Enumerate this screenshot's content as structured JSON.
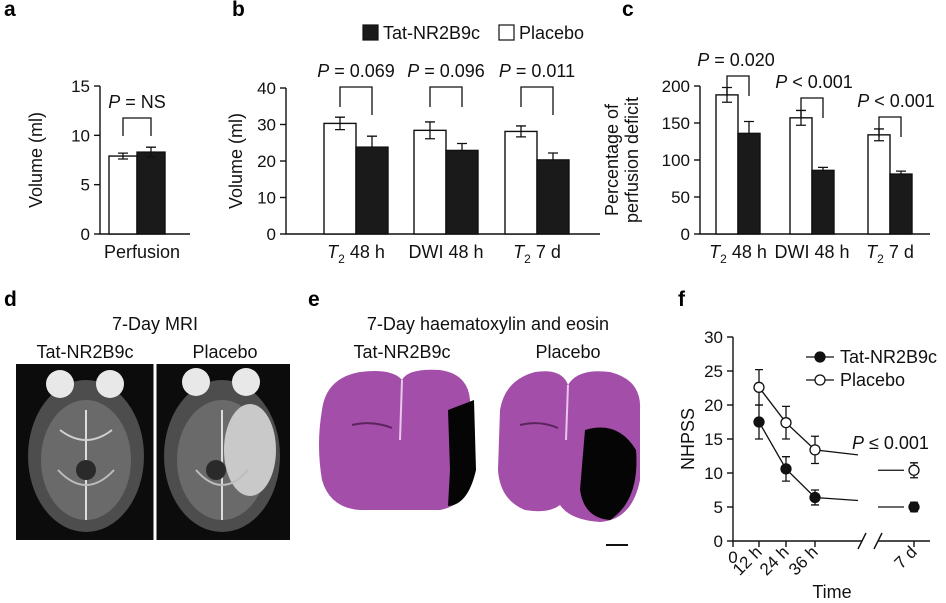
{
  "panels": {
    "a": "a",
    "b": "b",
    "c": "c",
    "d": "d",
    "e": "e",
    "f": "f"
  },
  "legend_top": {
    "treat": "Tat-NR2B9c",
    "placebo": "Placebo"
  },
  "panel_d": {
    "title": "7-Day MRI",
    "left_label": "Tat-NR2B9c",
    "right_label": "Placebo"
  },
  "panel_e": {
    "title": "7-Day haematoxylin and eosin",
    "left_label": "Tat-NR2B9c",
    "right_label": "Placebo"
  },
  "colors": {
    "treat": "#1a1a1a",
    "placebo": "#ffffff",
    "he_stain": "#a34ea8",
    "mri_bg": "#0c0c0c"
  },
  "chart_data": [
    {
      "id": "a",
      "type": "bar",
      "ylabel": "Volume (ml)",
      "ylim": [
        0,
        15
      ],
      "yticks": [
        "0",
        "5",
        "10",
        "15"
      ],
      "categories": [
        "Perfusion"
      ],
      "series": [
        {
          "name": "Placebo",
          "values": [
            7.9
          ],
          "errors": [
            0.3
          ]
        },
        {
          "name": "Tat-NR2B9c",
          "values": [
            8.3
          ],
          "errors": [
            0.5
          ]
        }
      ],
      "annotations": [
        "P = NS"
      ]
    },
    {
      "id": "b",
      "type": "bar",
      "ylabel": "Volume (ml)",
      "ylim": [
        0,
        40
      ],
      "yticks": [
        "0",
        "10",
        "20",
        "30",
        "40"
      ],
      "categories": [
        {
          "main": "T",
          "sub": "2",
          "rest": " 48 h"
        },
        {
          "main": "DWI 48 h",
          "sub": "",
          "rest": ""
        },
        {
          "main": "T",
          "sub": "2",
          "rest": " 7 d"
        }
      ],
      "series": [
        {
          "name": "Placebo",
          "values": [
            30.3,
            28.4,
            28.1
          ],
          "errors": [
            1.7,
            2.3,
            1.5
          ]
        },
        {
          "name": "Tat-NR2B9c",
          "values": [
            23.8,
            22.9,
            20.3
          ],
          "errors": [
            3.0,
            1.9,
            1.9
          ]
        }
      ],
      "annotations": [
        "P = 0.069",
        "P = 0.096",
        "P = 0.011"
      ]
    },
    {
      "id": "c",
      "type": "bar",
      "ylabel": "Percentage of perfusion deficit",
      "ylabel_lines": [
        "Percentage of",
        "perfusion deficit"
      ],
      "ylim": [
        0,
        200
      ],
      "yticks": [
        "0",
        "50",
        "100",
        "150",
        "200"
      ],
      "categories": [
        {
          "main": "T",
          "sub": "2",
          "rest": " 48 h"
        },
        {
          "main": "DWI 48 h",
          "sub": "",
          "rest": ""
        },
        {
          "main": "T",
          "sub": "2",
          "rest": " 7 d"
        }
      ],
      "series": [
        {
          "name": "Placebo",
          "values": [
            188,
            157,
            134
          ],
          "errors": [
            10,
            10,
            8
          ]
        },
        {
          "name": "Tat-NR2B9c",
          "values": [
            136,
            86,
            81
          ],
          "errors": [
            16,
            4,
            4
          ]
        }
      ],
      "annotations": [
        "P = 0.020",
        "P < 0.001",
        "P < 0.001"
      ]
    },
    {
      "id": "f",
      "type": "line",
      "xlabel": "Time",
      "ylabel": "NHPSS",
      "ylim": [
        0,
        30
      ],
      "yticks": [
        "0",
        "5",
        "10",
        "15",
        "20",
        "25",
        "30"
      ],
      "xticks": [
        "0",
        "12 h",
        "24 h",
        "36 h",
        "7 d"
      ],
      "series": [
        {
          "name": "Tat-NR2B9c",
          "x": [
            "12 h",
            "24 h",
            "36 h",
            "7 d"
          ],
          "values": [
            17.5,
            10.6,
            6.4,
            5.0
          ],
          "errors": [
            2.5,
            1.8,
            1.1,
            0.7
          ]
        },
        {
          "name": "Placebo",
          "x": [
            "12 h",
            "24 h",
            "36 h",
            "7 d"
          ],
          "values": [
            22.6,
            17.4,
            13.4,
            10.4
          ],
          "errors": [
            2.6,
            2.4,
            2.0,
            1.1
          ]
        }
      ],
      "annotations": [
        "P ≤ 0.001"
      ]
    }
  ]
}
